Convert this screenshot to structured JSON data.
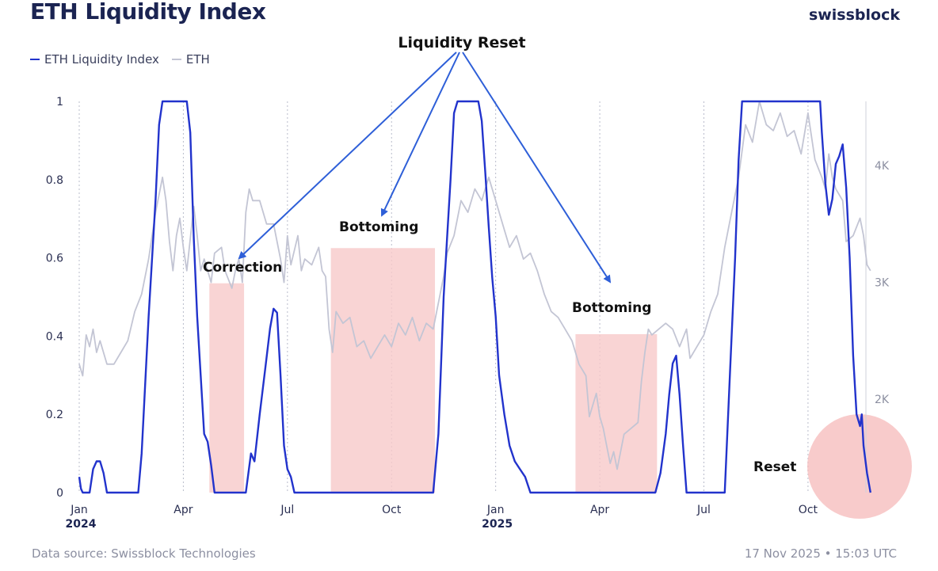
{
  "header": {
    "title": "ETH Liquidity Index",
    "brand": "swissblock"
  },
  "footer": {
    "source": "Data source: Swissblock Technologies",
    "timestamp": "17 Nov 2025 • 15:03 UTC"
  },
  "colors": {
    "index": "#2233cc",
    "eth": "#c3c5d4",
    "shade": "#f8c9c9",
    "arrow": "#2e5fd8",
    "circle": "#f6b9b9"
  },
  "chart_data": {
    "type": "line",
    "title": "ETH Liquidity Index",
    "legend": [
      {
        "name": "ETH Liquidity Index",
        "color": "#2233cc"
      },
      {
        "name": "ETH",
        "color": "#c3c5d4"
      }
    ],
    "x_ticks": [
      "Jan",
      "Apr",
      "Jul",
      "Oct",
      "Jan",
      "Apr",
      "Jul",
      "Oct"
    ],
    "x_tick_values": [
      0,
      3,
      6,
      9,
      12,
      15,
      18,
      21
    ],
    "year_labels": [
      {
        "label": "2024",
        "x": 0
      },
      {
        "label": "2025",
        "x": 12
      }
    ],
    "xlim": [
      0,
      22.6
    ],
    "y_left": {
      "lim": [
        0,
        1
      ],
      "ticks": [
        0,
        0.2,
        0.4,
        0.6,
        0.8,
        1
      ],
      "labels": [
        "0",
        "0.2",
        "0.4",
        "0.6",
        "0.8",
        "1"
      ]
    },
    "y_right": {
      "lim": [
        1200,
        4550
      ],
      "ticks": [
        2000,
        3000,
        4000
      ],
      "labels": [
        "2K",
        "3K",
        "4K"
      ]
    },
    "series": [
      {
        "name": "ETH Liquidity Index",
        "axis": "left",
        "points": [
          [
            0,
            0.04
          ],
          [
            0.05,
            0.01
          ],
          [
            0.1,
            0
          ],
          [
            0.3,
            0
          ],
          [
            0.4,
            0.06
          ],
          [
            0.5,
            0.08
          ],
          [
            0.6,
            0.08
          ],
          [
            0.7,
            0.05
          ],
          [
            0.8,
            0
          ],
          [
            1.7,
            0
          ],
          [
            1.8,
            0.1
          ],
          [
            2.0,
            0.45
          ],
          [
            2.2,
            0.75
          ],
          [
            2.3,
            0.94
          ],
          [
            2.4,
            1
          ],
          [
            3.1,
            1
          ],
          [
            3.2,
            0.92
          ],
          [
            3.3,
            0.65
          ],
          [
            3.4,
            0.45
          ],
          [
            3.5,
            0.3
          ],
          [
            3.6,
            0.15
          ],
          [
            3.7,
            0.13
          ],
          [
            3.8,
            0.07
          ],
          [
            3.9,
            0
          ],
          [
            4.8,
            0
          ],
          [
            4.95,
            0.1
          ],
          [
            5.05,
            0.08
          ],
          [
            5.2,
            0.2
          ],
          [
            5.35,
            0.31
          ],
          [
            5.5,
            0.42
          ],
          [
            5.6,
            0.47
          ],
          [
            5.7,
            0.46
          ],
          [
            5.8,
            0.3
          ],
          [
            5.9,
            0.12
          ],
          [
            6.0,
            0.06
          ],
          [
            6.1,
            0.04
          ],
          [
            6.2,
            0
          ],
          [
            10.2,
            0
          ],
          [
            10.35,
            0.15
          ],
          [
            10.5,
            0.5
          ],
          [
            10.6,
            0.65
          ],
          [
            10.7,
            0.8
          ],
          [
            10.8,
            0.97
          ],
          [
            10.9,
            1
          ],
          [
            11.5,
            1
          ],
          [
            11.6,
            0.95
          ],
          [
            11.7,
            0.82
          ],
          [
            11.8,
            0.68
          ],
          [
            11.9,
            0.55
          ],
          [
            12.0,
            0.45
          ],
          [
            12.1,
            0.3
          ],
          [
            12.25,
            0.2
          ],
          [
            12.4,
            0.12
          ],
          [
            12.55,
            0.08
          ],
          [
            12.7,
            0.06
          ],
          [
            12.85,
            0.04
          ],
          [
            13.0,
            0
          ],
          [
            16.6,
            0
          ],
          [
            16.75,
            0.05
          ],
          [
            16.9,
            0.15
          ],
          [
            17.0,
            0.25
          ],
          [
            17.1,
            0.33
          ],
          [
            17.2,
            0.35
          ],
          [
            17.3,
            0.25
          ],
          [
            17.4,
            0.12
          ],
          [
            17.5,
            0
          ],
          [
            18.6,
            0
          ],
          [
            18.75,
            0.3
          ],
          [
            18.9,
            0.6
          ],
          [
            19.0,
            0.85
          ],
          [
            19.1,
            1
          ],
          [
            21.35,
            1
          ],
          [
            21.4,
            0.92
          ],
          [
            21.5,
            0.79
          ],
          [
            21.6,
            0.71
          ],
          [
            21.7,
            0.75
          ],
          [
            21.8,
            0.84
          ],
          [
            21.9,
            0.86
          ],
          [
            22.0,
            0.89
          ],
          [
            22.1,
            0.78
          ],
          [
            22.2,
            0.6
          ],
          [
            22.3,
            0.35
          ],
          [
            22.4,
            0.2
          ],
          [
            22.5,
            0.17
          ],
          [
            22.55,
            0.2
          ],
          [
            22.6,
            0.12
          ],
          [
            22.7,
            0.05
          ],
          [
            22.8,
            0
          ]
        ]
      },
      {
        "name": "ETH",
        "axis": "right",
        "points": [
          [
            0,
            2300
          ],
          [
            0.1,
            2200
          ],
          [
            0.2,
            2550
          ],
          [
            0.3,
            2450
          ],
          [
            0.4,
            2600
          ],
          [
            0.5,
            2400
          ],
          [
            0.6,
            2500
          ],
          [
            0.8,
            2300
          ],
          [
            1.0,
            2300
          ],
          [
            1.2,
            2400
          ],
          [
            1.4,
            2500
          ],
          [
            1.6,
            2750
          ],
          [
            1.8,
            2900
          ],
          [
            2.0,
            3200
          ],
          [
            2.2,
            3600
          ],
          [
            2.4,
            3900
          ],
          [
            2.5,
            3700
          ],
          [
            2.6,
            3350
          ],
          [
            2.7,
            3100
          ],
          [
            2.8,
            3400
          ],
          [
            2.9,
            3550
          ],
          [
            3.0,
            3300
          ],
          [
            3.1,
            3100
          ],
          [
            3.3,
            3650
          ],
          [
            3.4,
            3400
          ],
          [
            3.5,
            3100
          ],
          [
            3.6,
            3200
          ],
          [
            3.8,
            3000
          ],
          [
            3.9,
            3250
          ],
          [
            4.1,
            3300
          ],
          [
            4.2,
            3100
          ],
          [
            4.4,
            2950
          ],
          [
            4.5,
            3100
          ],
          [
            4.6,
            3200
          ],
          [
            4.7,
            3000
          ],
          [
            4.8,
            3600
          ],
          [
            4.9,
            3800
          ],
          [
            5.0,
            3700
          ],
          [
            5.2,
            3700
          ],
          [
            5.4,
            3500
          ],
          [
            5.6,
            3500
          ],
          [
            5.8,
            3200
          ],
          [
            5.9,
            3000
          ],
          [
            6.0,
            3400
          ],
          [
            6.1,
            3150
          ],
          [
            6.3,
            3400
          ],
          [
            6.4,
            3100
          ],
          [
            6.5,
            3200
          ],
          [
            6.7,
            3150
          ],
          [
            6.9,
            3300
          ],
          [
            7.0,
            3100
          ],
          [
            7.1,
            3050
          ],
          [
            7.2,
            2600
          ],
          [
            7.3,
            2400
          ],
          [
            7.4,
            2750
          ],
          [
            7.6,
            2650
          ],
          [
            7.8,
            2700
          ],
          [
            8.0,
            2450
          ],
          [
            8.2,
            2500
          ],
          [
            8.4,
            2350
          ],
          [
            8.6,
            2450
          ],
          [
            8.8,
            2550
          ],
          [
            9.0,
            2450
          ],
          [
            9.2,
            2650
          ],
          [
            9.4,
            2550
          ],
          [
            9.6,
            2700
          ],
          [
            9.8,
            2500
          ],
          [
            10.0,
            2650
          ],
          [
            10.2,
            2600
          ],
          [
            10.4,
            2900
          ],
          [
            10.5,
            3050
          ],
          [
            10.6,
            3250
          ],
          [
            10.8,
            3400
          ],
          [
            11.0,
            3700
          ],
          [
            11.2,
            3600
          ],
          [
            11.4,
            3800
          ],
          [
            11.6,
            3700
          ],
          [
            11.8,
            3900
          ],
          [
            12.0,
            3700
          ],
          [
            12.2,
            3500
          ],
          [
            12.4,
            3300
          ],
          [
            12.6,
            3400
          ],
          [
            12.8,
            3200
          ],
          [
            13.0,
            3250
          ],
          [
            13.2,
            3100
          ],
          [
            13.4,
            2900
          ],
          [
            13.6,
            2750
          ],
          [
            13.8,
            2700
          ],
          [
            14.0,
            2600
          ],
          [
            14.2,
            2500
          ],
          [
            14.4,
            2300
          ],
          [
            14.6,
            2200
          ],
          [
            14.7,
            1850
          ],
          [
            14.8,
            1950
          ],
          [
            14.9,
            2050
          ],
          [
            15.0,
            1850
          ],
          [
            15.1,
            1750
          ],
          [
            15.2,
            1600
          ],
          [
            15.3,
            1450
          ],
          [
            15.4,
            1550
          ],
          [
            15.5,
            1400
          ],
          [
            15.7,
            1700
          ],
          [
            15.9,
            1750
          ],
          [
            16.1,
            1800
          ],
          [
            16.2,
            2150
          ],
          [
            16.3,
            2400
          ],
          [
            16.4,
            2600
          ],
          [
            16.5,
            2550
          ],
          [
            16.7,
            2600
          ],
          [
            16.9,
            2650
          ],
          [
            17.1,
            2600
          ],
          [
            17.3,
            2450
          ],
          [
            17.5,
            2600
          ],
          [
            17.6,
            2350
          ],
          [
            17.8,
            2450
          ],
          [
            18.0,
            2550
          ],
          [
            18.2,
            2750
          ],
          [
            18.4,
            2900
          ],
          [
            18.6,
            3300
          ],
          [
            18.8,
            3600
          ],
          [
            19.0,
            3900
          ],
          [
            19.2,
            4350
          ],
          [
            19.4,
            4200
          ],
          [
            19.6,
            4550
          ],
          [
            19.8,
            4350
          ],
          [
            20.0,
            4300
          ],
          [
            20.2,
            4450
          ],
          [
            20.4,
            4250
          ],
          [
            20.6,
            4300
          ],
          [
            20.8,
            4100
          ],
          [
            21.0,
            4450
          ],
          [
            21.2,
            4050
          ],
          [
            21.4,
            3900
          ],
          [
            21.5,
            3800
          ],
          [
            21.6,
            4100
          ],
          [
            21.7,
            3900
          ],
          [
            21.8,
            3800
          ],
          [
            22.0,
            3700
          ],
          [
            22.1,
            3350
          ],
          [
            22.3,
            3400
          ],
          [
            22.5,
            3550
          ],
          [
            22.6,
            3400
          ],
          [
            22.7,
            3150
          ],
          [
            22.8,
            3100
          ]
        ]
      }
    ],
    "shaded_regions": [
      {
        "label": "Correction",
        "x0": 3.75,
        "x1": 4.75,
        "y_top": 0.535
      },
      {
        "label": "Bottoming",
        "x0": 7.25,
        "x1": 10.25,
        "y_top": 0.625
      },
      {
        "label": "Bottoming",
        "x0": 14.3,
        "x1": 16.65,
        "y_top": 0.405
      }
    ],
    "annotations": [
      "Liquidity Reset",
      "Correction",
      "Bottoming",
      "Bottoming",
      "Reset"
    ]
  }
}
